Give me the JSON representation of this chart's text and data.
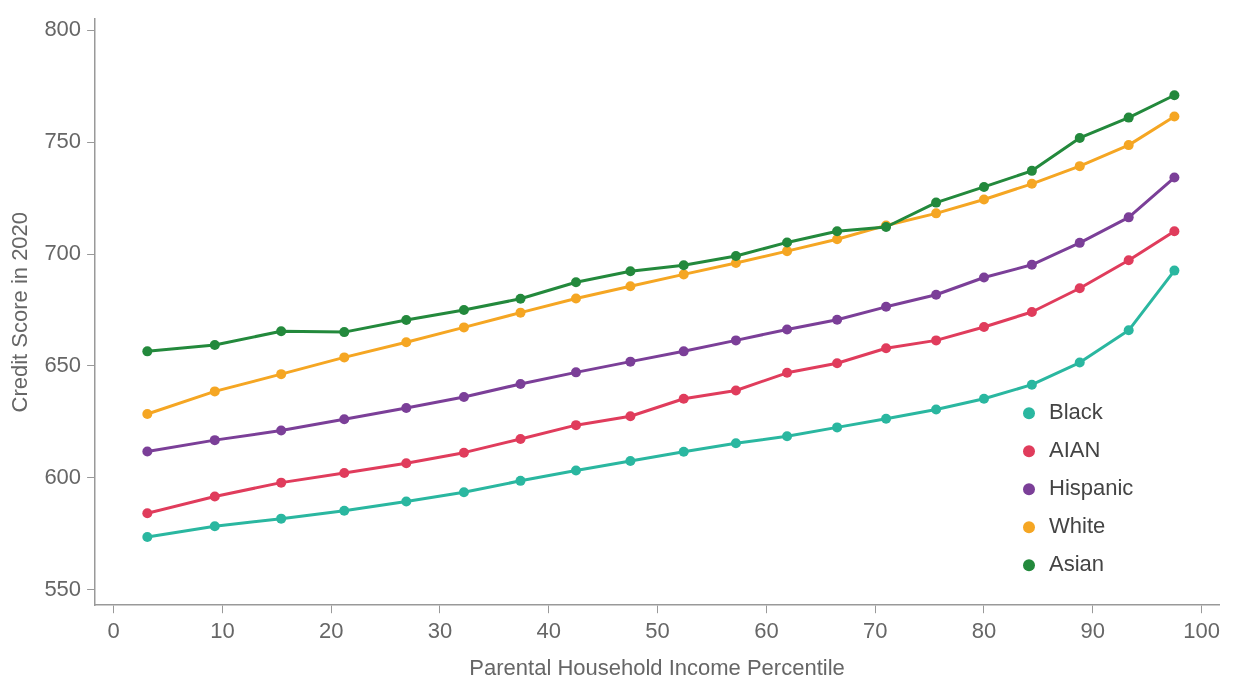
{
  "chart_data": {
    "type": "line",
    "xlabel": "Parental Household Income Percentile",
    "ylabel": "Credit Score in 2020",
    "x": [
      3.1,
      9.3,
      15.4,
      21.2,
      26.9,
      32.2,
      37.4,
      42.5,
      47.5,
      52.4,
      57.2,
      61.9,
      66.5,
      71.0,
      75.6,
      80.0,
      84.4,
      88.8,
      93.3,
      97.5
    ],
    "series": [
      {
        "name": "Black",
        "color": "#2ab7a0",
        "values": [
          573.5,
          578.3,
          581.7,
          585.2,
          589.4,
          593.5,
          598.6,
          603.2,
          607.5,
          611.6,
          615.4,
          618.5,
          622.5,
          626.4,
          630.5,
          635.3,
          641.6,
          651.5,
          665.9,
          692.6
        ]
      },
      {
        "name": "AIAN",
        "color": "#e03c5c",
        "values": [
          584.1,
          591.6,
          597.8,
          602.1,
          606.5,
          611.2,
          617.3,
          623.5,
          627.5,
          635.3,
          639.0,
          646.9,
          651.2,
          657.9,
          661.4,
          667.4,
          674.1,
          684.7,
          697.2,
          710.2
        ]
      },
      {
        "name": "Hispanic",
        "color": "#7b3f98",
        "values": [
          611.7,
          616.8,
          621.1,
          626.1,
          631.2,
          636.1,
          641.9,
          647.1,
          651.9,
          656.5,
          661.4,
          666.3,
          670.6,
          676.4,
          681.8,
          689.5,
          695.2,
          705.0,
          716.4,
          734.2
        ]
      },
      {
        "name": "White",
        "color": "#f5a623",
        "values": [
          628.5,
          638.6,
          646.3,
          653.8,
          660.6,
          667.2,
          673.8,
          680.1,
          685.6,
          690.9,
          696.0,
          701.3,
          706.6,
          712.8,
          718.2,
          724.4,
          731.4,
          739.3,
          748.7,
          761.5
        ]
      },
      {
        "name": "Asian",
        "color": "#23893c",
        "values": [
          656.5,
          659.3,
          665.5,
          665.1,
          670.5,
          675.0,
          680.0,
          687.4,
          692.3,
          695.0,
          699.1,
          705.2,
          710.2,
          712.1,
          723.0,
          730.0,
          737.2,
          751.9,
          761.0,
          771.0
        ]
      }
    ],
    "xlim": [
      -1.7,
      101.6
    ],
    "xticks": [
      0,
      10,
      20,
      30,
      40,
      50,
      60,
      70,
      80,
      90,
      100
    ],
    "ylim": [
      543,
      805
    ],
    "yticks": [
      550,
      600,
      650,
      700,
      750,
      800
    ],
    "grid": false,
    "legend": "bottom right",
    "marker": "circle",
    "line_style": "solid"
  }
}
